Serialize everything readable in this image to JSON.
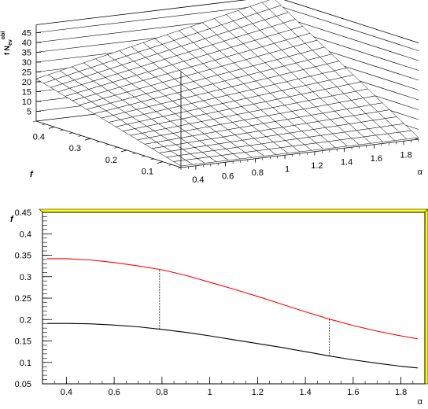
{
  "chart_data": [
    {
      "type": "surface",
      "xlabel": "α",
      "ylabel": "f",
      "zlabel_main": "f N",
      "zlabel_sub": "ev",
      "zlabel_sup": "obl",
      "x_ticks": [
        "0.4",
        "0.6",
        "0.8",
        "1",
        "1.2",
        "1.4",
        "1.6",
        "1.8"
      ],
      "y_ticks": [
        "0.1",
        "0.2",
        "0.3",
        "0.4"
      ],
      "z_ticks": [
        "5",
        "10",
        "15",
        "20",
        "25",
        "30",
        "35",
        "40",
        "45"
      ],
      "xlim": [
        0.3,
        1.9
      ],
      "ylim": [
        0.05,
        0.45
      ],
      "zlim": [
        0,
        49
      ],
      "grid_n": 20,
      "corners_z": {
        "a0_f0": 0.8,
        "a1_f0": 0.8,
        "a0_f1": 21.5,
        "a1_f1": 48
      }
    },
    {
      "type": "line",
      "xlabel": "α",
      "ylabel": "f",
      "x_ticks": [
        "0.4",
        "0.6",
        "0.8",
        "1",
        "1.2",
        "1.4",
        "1.6",
        "1.8"
      ],
      "y_ticks": [
        "0.05",
        "0.1",
        "0.15",
        "0.2",
        "0.25",
        "0.3",
        "0.35",
        "0.4",
        "0.45"
      ],
      "xlim": [
        0.3,
        1.9
      ],
      "ylim": [
        0.05,
        0.45
      ],
      "frame_fill": "#ffff00",
      "series": [
        {
          "color": "#ff0000",
          "x": [
            0.32,
            0.4,
            0.5,
            0.6,
            0.7,
            0.8,
            0.9,
            1.0,
            1.1,
            1.2,
            1.3,
            1.4,
            1.5,
            1.6,
            1.7,
            1.8,
            1.87
          ],
          "y": [
            0.342,
            0.342,
            0.339,
            0.333,
            0.325,
            0.316,
            0.303,
            0.287,
            0.271,
            0.254,
            0.236,
            0.218,
            0.201,
            0.186,
            0.173,
            0.162,
            0.155
          ]
        },
        {
          "color": "#000000",
          "x": [
            0.32,
            0.4,
            0.5,
            0.6,
            0.7,
            0.8,
            0.9,
            1.0,
            1.1,
            1.2,
            1.3,
            1.4,
            1.5,
            1.6,
            1.7,
            1.8,
            1.87
          ],
          "y": [
            0.191,
            0.191,
            0.19,
            0.187,
            0.183,
            0.177,
            0.17,
            0.162,
            0.153,
            0.144,
            0.135,
            0.125,
            0.115,
            0.106,
            0.098,
            0.091,
            0.087
          ]
        }
      ],
      "markers": [
        {
          "x": 0.79,
          "y_low": 0.177,
          "y_high": 0.316
        },
        {
          "x": 1.5,
          "y_low": 0.114,
          "y_high": 0.201
        }
      ]
    }
  ]
}
